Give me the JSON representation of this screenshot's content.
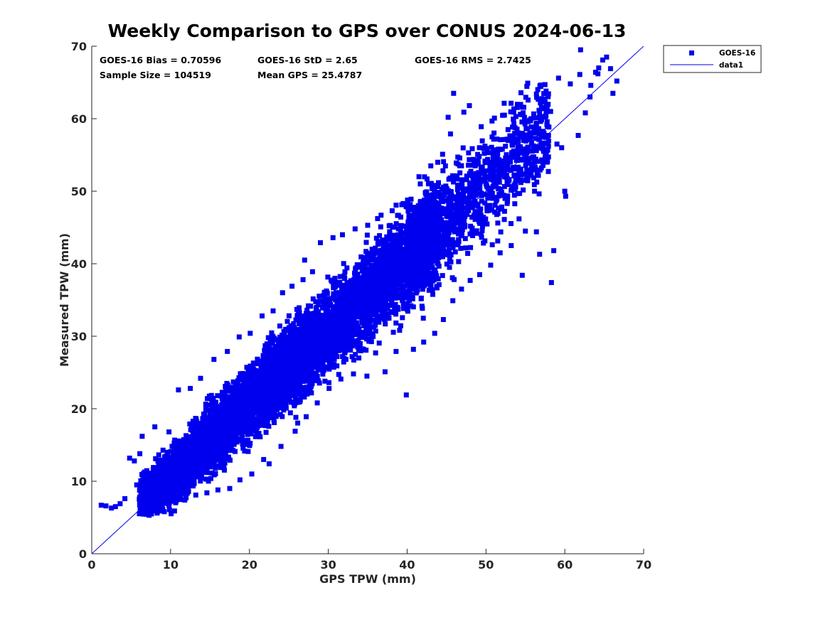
{
  "chart_data": {
    "type": "scatter",
    "title": "Weekly Comparison to GPS over CONUS 2024-06-13",
    "xlabel": "GPS TPW (mm)",
    "ylabel": "Measured TPW (mm)",
    "xlim": [
      0,
      70
    ],
    "ylim": [
      0,
      70
    ],
    "xticks": [
      "0",
      "10",
      "20",
      "30",
      "40",
      "50",
      "60",
      "70"
    ],
    "yticks": [
      "0",
      "10",
      "20",
      "30",
      "40",
      "50",
      "60",
      "70"
    ],
    "grid": false,
    "legend_position": "outside-top-right",
    "annotations": [
      "GOES-16 Bias = 0.70596",
      "GOES-16 StD = 2.65",
      "GOES-16 RMS = 2.7425",
      "Sample Size = 104519",
      "Mean GPS = 25.4787"
    ],
    "series": [
      {
        "name": "GOES-16",
        "kind": "scatter",
        "marker": "square",
        "color": "#0000ee",
        "points": [
          [
            1.2,
            6.7
          ],
          [
            1.8,
            6.6
          ],
          [
            2.5,
            6.3
          ],
          [
            3.0,
            6.5
          ],
          [
            3.6,
            6.9
          ],
          [
            4.2,
            7.6
          ],
          [
            4.8,
            13.2
          ],
          [
            5.4,
            12.8
          ],
          [
            6.1,
            13.8
          ],
          [
            5.7,
            9.5
          ],
          [
            6.8,
            5.9
          ],
          [
            7.3,
            5.6
          ],
          [
            7.9,
            5.9
          ],
          [
            8.6,
            6.3
          ],
          [
            9.2,
            5.8
          ],
          [
            10.5,
            5.9
          ],
          [
            6.4,
            16.2
          ],
          [
            8.0,
            17.5
          ],
          [
            9.8,
            16.8
          ],
          [
            11.0,
            22.6
          ],
          [
            12.5,
            22.8
          ],
          [
            13.8,
            24.2
          ],
          [
            11.8,
            7.4
          ],
          [
            13.2,
            8.1
          ],
          [
            14.6,
            8.4
          ],
          [
            16.0,
            8.8
          ],
          [
            17.5,
            9.0
          ],
          [
            18.8,
            10.2
          ],
          [
            20.3,
            11.0
          ],
          [
            21.8,
            13.0
          ],
          [
            15.5,
            26.8
          ],
          [
            17.2,
            27.9
          ],
          [
            18.7,
            29.9
          ],
          [
            20.1,
            30.4
          ],
          [
            21.6,
            32.8
          ],
          [
            23.0,
            33.5
          ],
          [
            24.2,
            36.0
          ],
          [
            25.4,
            36.9
          ],
          [
            26.8,
            37.8
          ],
          [
            28.0,
            38.9
          ],
          [
            22.5,
            12.4
          ],
          [
            24.0,
            14.8
          ],
          [
            25.8,
            16.9
          ],
          [
            27.2,
            18.9
          ],
          [
            28.6,
            20.8
          ],
          [
            30.1,
            22.8
          ],
          [
            31.6,
            24.1
          ],
          [
            33.2,
            24.8
          ],
          [
            34.9,
            24.5
          ],
          [
            36.0,
            27.7
          ],
          [
            27.0,
            40.5
          ],
          [
            29.0,
            42.9
          ],
          [
            30.6,
            43.6
          ],
          [
            31.8,
            44.0
          ],
          [
            33.4,
            44.8
          ],
          [
            35.0,
            45.3
          ],
          [
            36.7,
            46.7
          ],
          [
            38.1,
            47.3
          ],
          [
            39.5,
            48.3
          ],
          [
            40.5,
            48.9
          ],
          [
            37.2,
            25.1
          ],
          [
            38.6,
            27.9
          ],
          [
            39.9,
            21.9
          ],
          [
            40.8,
            28.2
          ],
          [
            42.1,
            29.2
          ],
          [
            43.5,
            30.4
          ],
          [
            44.6,
            32.3
          ],
          [
            45.8,
            34.9
          ],
          [
            46.9,
            36.5
          ],
          [
            48.0,
            37.7
          ],
          [
            41.5,
            52.0
          ],
          [
            43.0,
            53.5
          ],
          [
            44.5,
            55.1
          ],
          [
            45.5,
            57.9
          ],
          [
            45.2,
            60.2
          ],
          [
            45.9,
            63.5
          ],
          [
            47.2,
            60.9
          ],
          [
            47.9,
            61.8
          ],
          [
            49.4,
            58.9
          ],
          [
            50.1,
            55.9
          ],
          [
            49.2,
            38.5
          ],
          [
            50.6,
            39.8
          ],
          [
            51.8,
            41.5
          ],
          [
            53.2,
            42.5
          ],
          [
            54.6,
            38.4
          ],
          [
            55.0,
            44.5
          ],
          [
            56.4,
            44.4
          ],
          [
            56.8,
            41.3
          ],
          [
            58.3,
            37.4
          ],
          [
            58.6,
            41.8
          ],
          [
            51.4,
            57.2
          ],
          [
            52.8,
            58.5
          ],
          [
            53.8,
            60.3
          ],
          [
            54.6,
            61.6
          ],
          [
            55.3,
            64.9
          ],
          [
            56.4,
            63.4
          ],
          [
            57.5,
            62.3
          ],
          [
            58.2,
            61.0
          ],
          [
            59.0,
            56.5
          ],
          [
            59.6,
            56.0
          ],
          [
            60.1,
            49.3
          ],
          [
            60.0,
            50.0
          ],
          [
            61.7,
            57.7
          ],
          [
            62.0,
            69.5
          ],
          [
            62.6,
            60.8
          ],
          [
            63.2,
            63.0
          ],
          [
            63.9,
            66.4
          ],
          [
            64.3,
            67.0
          ],
          [
            64.8,
            68.1
          ],
          [
            65.3,
            68.5
          ],
          [
            65.8,
            66.9
          ],
          [
            66.6,
            65.2
          ],
          [
            66.1,
            63.5
          ],
          [
            64.2,
            66.2
          ],
          [
            63.3,
            64.6
          ],
          [
            61.9,
            66.1
          ],
          [
            60.7,
            64.8
          ],
          [
            59.2,
            65.6
          ],
          [
            57.8,
            54.1
          ],
          [
            55.8,
            53.2
          ]
        ]
      },
      {
        "name": "data1",
        "kind": "line",
        "color": "#0000ee",
        "x": [
          0,
          70
        ],
        "y": [
          0,
          70
        ]
      }
    ]
  }
}
